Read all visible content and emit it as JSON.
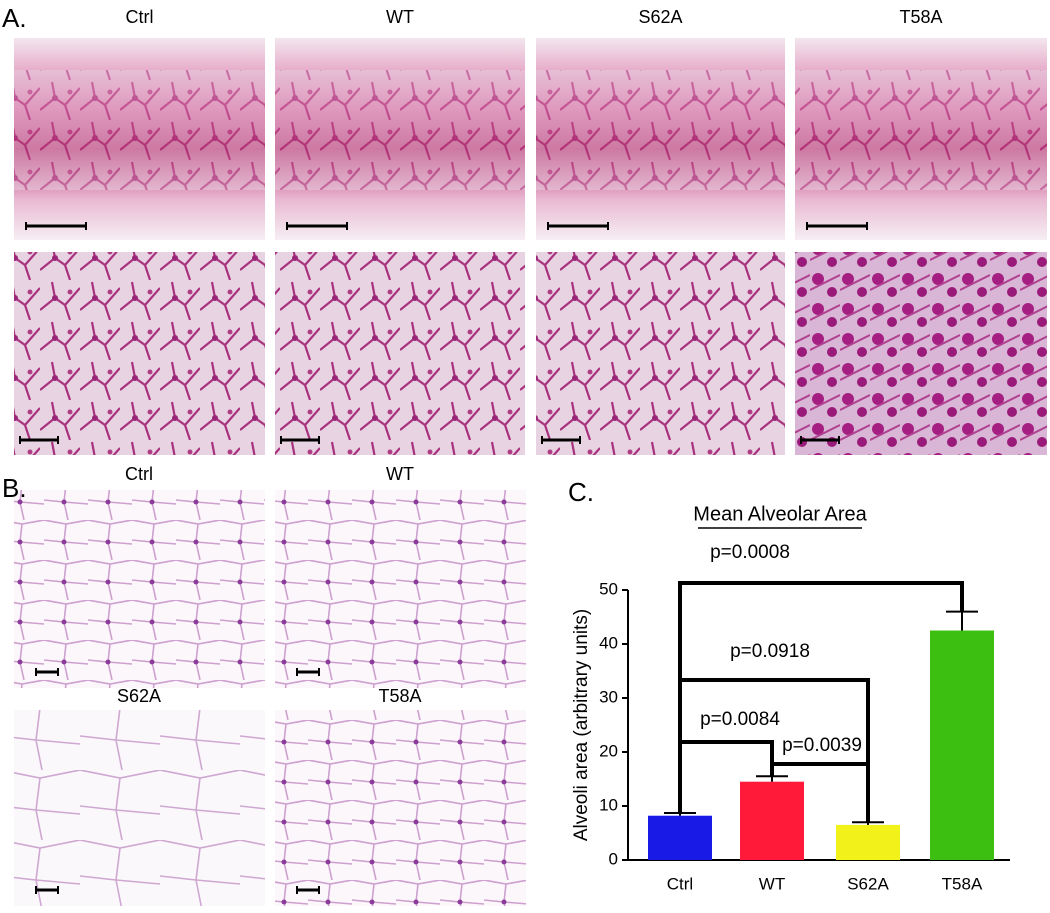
{
  "panel_a": {
    "label": "A.",
    "columns": [
      "Ctrl",
      "WT",
      "S62A",
      "T58A"
    ]
  },
  "panel_b": {
    "label": "B.",
    "panels": [
      "Ctrl",
      "WT",
      "S62A",
      "T58A"
    ]
  },
  "panel_c": {
    "label": "C."
  },
  "chart_data": {
    "type": "bar",
    "title": "Mean Alveolar Area",
    "y_label": "Alveoli area (arbitrary units)",
    "categories": [
      "Ctrl",
      "WT",
      "S62A",
      "T58A"
    ],
    "series": [
      {
        "values": [
          8.2,
          14.5,
          6.5,
          42.5
        ],
        "errors": [
          0.5,
          1.0,
          0.5,
          3.5
        ],
        "colors": [
          "#1a1ae6",
          "#ff1a3a",
          "#f2f21a",
          "#3cbf10"
        ]
      }
    ],
    "ylim": [
      0,
      50
    ],
    "yticks": [
      0,
      10,
      20,
      30,
      40,
      50
    ],
    "annotations": [
      "p=0.0008",
      "p=0.0918",
      "p=0.0084",
      "p=0.0039"
    ]
  }
}
